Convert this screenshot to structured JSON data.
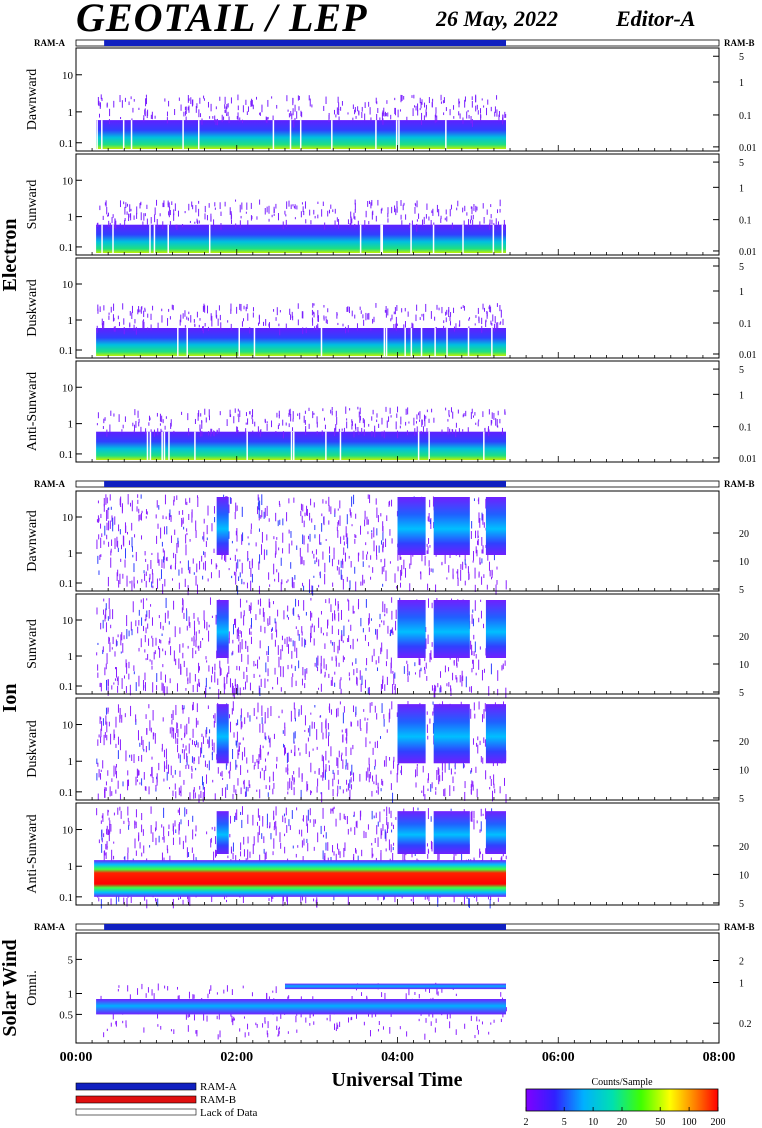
{
  "header": {
    "title": "GEOTAIL / LEP",
    "date": "26 May, 2022",
    "editor": "Editor-A"
  },
  "colors": {
    "ram_a": "#1020c0",
    "ram_b": "#e01010",
    "background": "#ffffff"
  },
  "chart_data": [
    {
      "type": "heatmap",
      "group": "Electron",
      "panel": "Dawnward",
      "y_left_ticks": [
        "10",
        "1",
        "0.1"
      ],
      "y_right_ticks": [
        "5",
        "1",
        "0.1",
        "0.01"
      ],
      "data_coverage_hours": [
        0.25,
        5.35
      ]
    },
    {
      "type": "heatmap",
      "group": "Electron",
      "panel": "Sunward",
      "y_left_ticks": [
        "10",
        "1",
        "0.1"
      ],
      "y_right_ticks": [
        "5",
        "1",
        "0.1",
        "0.01"
      ],
      "data_coverage_hours": [
        0.25,
        5.35
      ]
    },
    {
      "type": "heatmap",
      "group": "Electron",
      "panel": "Duskward",
      "y_left_ticks": [
        "10",
        "1",
        "0.1"
      ],
      "y_right_ticks": [
        "5",
        "1",
        "0.1",
        "0.01"
      ],
      "data_coverage_hours": [
        0.25,
        5.35
      ]
    },
    {
      "type": "heatmap",
      "group": "Electron",
      "panel": "Anti-Sunward",
      "y_left_ticks": [
        "10",
        "1",
        "0.1"
      ],
      "y_right_ticks": [
        "5",
        "1",
        "0.1",
        "0.01"
      ],
      "data_coverage_hours": [
        0.25,
        5.35
      ]
    },
    {
      "type": "heatmap",
      "group": "Ion",
      "panel": "Dawnward",
      "y_left_ticks": [
        "10",
        "1",
        "0.1"
      ],
      "y_right_ticks": [
        "20",
        "10",
        "5"
      ],
      "data_coverage_hours": [
        0.25,
        5.35
      ]
    },
    {
      "type": "heatmap",
      "group": "Ion",
      "panel": "Sunward",
      "y_left_ticks": [
        "10",
        "1",
        "0.1"
      ],
      "y_right_ticks": [
        "20",
        "10",
        "5"
      ],
      "data_coverage_hours": [
        0.25,
        5.35
      ]
    },
    {
      "type": "heatmap",
      "group": "Ion",
      "panel": "Duskward",
      "y_left_ticks": [
        "10",
        "1",
        "0.1"
      ],
      "y_right_ticks": [
        "20",
        "10",
        "5"
      ],
      "data_coverage_hours": [
        0.25,
        5.35
      ]
    },
    {
      "type": "heatmap",
      "group": "Ion",
      "panel": "Anti-Sunward",
      "y_left_ticks": [
        "10",
        "1",
        "0.1"
      ],
      "y_right_ticks": [
        "20",
        "10",
        "5"
      ],
      "data_coverage_hours": [
        0.25,
        5.35
      ]
    },
    {
      "type": "heatmap",
      "group": "Solar Wind",
      "panel": "Omni.",
      "y_left_ticks": [
        "5",
        "1",
        "0.5"
      ],
      "y_right_ticks": [
        "2",
        "1",
        "0.2"
      ],
      "data_coverage_hours": [
        0.25,
        5.35
      ]
    }
  ],
  "x_axis": {
    "label": "Universal Time",
    "ticks": [
      "00:00",
      "02:00",
      "04:00",
      "06:00",
      "08:00"
    ],
    "range_hours": [
      0,
      8
    ]
  },
  "group_labels": [
    "Electron",
    "Ion",
    "Solar Wind"
  ],
  "ram_labels": {
    "a": "RAM-A",
    "b": "RAM-B"
  },
  "mode_bar": {
    "ram_a_hours": [
      0.35,
      5.35
    ]
  },
  "legend": {
    "ram_a": "RAM-A",
    "ram_b": "RAM-B",
    "lack": "Lack of Data"
  },
  "colorbar": {
    "title": "Counts/Sample",
    "ticks": [
      "2",
      "5",
      "10",
      "20",
      "50",
      "100",
      "200"
    ],
    "range": [
      2,
      200
    ],
    "scale": "log"
  }
}
